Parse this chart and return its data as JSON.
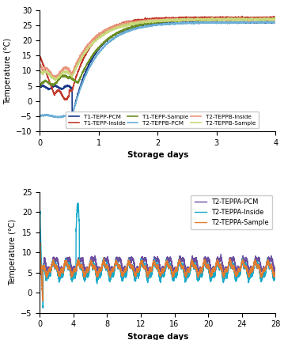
{
  "top_chart": {
    "xlabel": "Storage days",
    "ylabel": "Temperature (°C)",
    "xlim": [
      0,
      4
    ],
    "ylim": [
      -10,
      30
    ],
    "yticks": [
      -10,
      -5,
      0,
      5,
      10,
      15,
      20,
      25,
      30
    ],
    "xticks": [
      0,
      1,
      2,
      3,
      4
    ],
    "series": {
      "T1-TEPP-PCM": {
        "color": "#1a3a8a",
        "lw": 1.2
      },
      "T1-TEPP-Inside": {
        "color": "#c0392b",
        "lw": 1.2
      },
      "T1-TEPP-Sample": {
        "color": "#6b8e23",
        "lw": 1.2
      },
      "T2-TEPPB-PCM": {
        "color": "#6baed6",
        "lw": 1.2
      },
      "T2-TEPPB-Inside": {
        "color": "#e8967a",
        "lw": 1.2
      },
      "T2-TEPPB-Sample": {
        "color": "#c8d87a",
        "lw": 1.2
      }
    }
  },
  "bottom_chart": {
    "xlabel": "Storage days",
    "ylabel": "Temperature (°C)",
    "xlim": [
      0,
      28
    ],
    "ylim": [
      -5,
      25
    ],
    "yticks": [
      -5,
      0,
      5,
      10,
      15,
      20,
      25
    ],
    "xticks": [
      0,
      4,
      8,
      12,
      16,
      20,
      24,
      28
    ],
    "series": {
      "T2-TEPPA-PCM": {
        "color": "#6b4fa0",
        "lw": 1.0
      },
      "T2-TEPPA-Inside": {
        "color": "#18a9c9",
        "lw": 1.0
      },
      "T2-TEPPA-Sample": {
        "color": "#e07b30",
        "lw": 1.0
      }
    }
  }
}
